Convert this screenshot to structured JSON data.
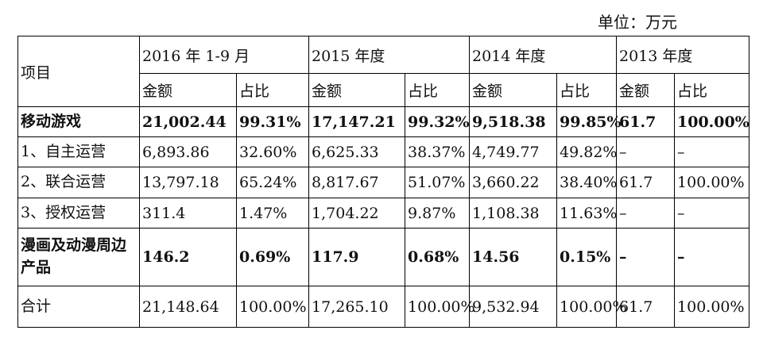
{
  "unit": "单位：万元",
  "table": {
    "header": [
      "项目",
      "2016 年 1-9 月",
      "2015 年度",
      "2014 年度",
      "2013 年度"
    ],
    "subheader": [
      "金额",
      "占比",
      "金额",
      "占比",
      "金额",
      "占比",
      "金额",
      "占比"
    ],
    "rows": [
      [
        "移动游戏",
        "21,002.44",
        "99.31%",
        "17,147.21",
        "99.32%",
        "9,518.38",
        "99.85%",
        "61.7",
        "100.00%"
      ],
      [
        "1、自主运营",
        "6,893.86",
        "32.60%",
        "6,625.33",
        "38.37%",
        "4,749.77",
        "49.82%",
        "–",
        "–"
      ],
      [
        "2、联合运营",
        "13,797.18",
        "65.24%",
        "8,817.67",
        "51.07%",
        "3,660.22",
        "38.40%",
        "61.7",
        "100.00%"
      ],
      [
        "3、授权运营",
        "311.4",
        "1.47%",
        "1,704.22",
        "9.87%",
        "1,108.38",
        "11.63%",
        "–",
        "–"
      ],
      [
        "漫画及动漫周边产品",
        "146.2",
        "0.69%",
        "117.9",
        "0.68%",
        "14.56",
        "0.15%",
        "–",
        "–"
      ],
      [
        "合计",
        "21,148.64",
        "100.00%",
        "17,265.10",
        "100.00%",
        "9,532.94",
        "100.00%",
        "61.7",
        "100.00%"
      ]
    ]
  }
}
